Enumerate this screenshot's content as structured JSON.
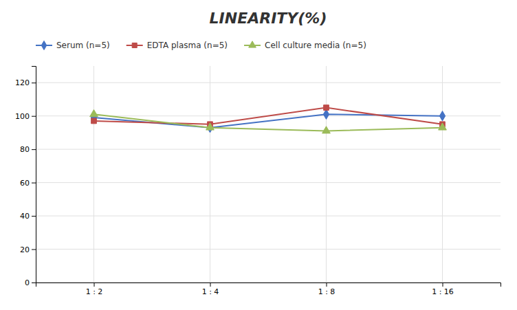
{
  "chart_data": {
    "type": "line",
    "title": "LINEARITY(%)",
    "categories": [
      "1 : 2",
      "1 : 4",
      "1 : 8",
      "1 : 16"
    ],
    "series": [
      {
        "name": "Serum (n=5)",
        "color": "#4472C4",
        "marker": "diamond",
        "values": [
          99,
          93,
          101,
          100
        ]
      },
      {
        "name": "EDTA plasma (n=5)",
        "color": "#BE4B48",
        "marker": "square",
        "values": [
          97,
          95,
          105,
          95
        ]
      },
      {
        "name": "Cell culture media (n=5)",
        "color": "#9BBB59",
        "marker": "triangle",
        "values": [
          101,
          93,
          91,
          93
        ]
      }
    ],
    "ylim": [
      0,
      130
    ],
    "yticks": [
      0,
      20,
      40,
      60,
      80,
      100,
      120
    ],
    "grid": true,
    "legend": "top"
  }
}
